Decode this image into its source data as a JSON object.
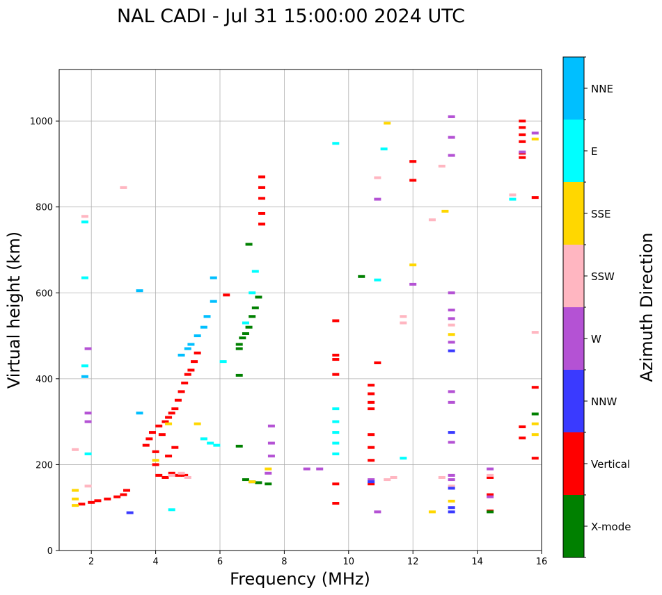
{
  "chart_data": {
    "type": "scatter",
    "title": "NAL CADI - Jul 31 15:00:00 2024 UTC",
    "xlabel": "Frequency (MHz)",
    "ylabel": "Virtual height (km)",
    "xlim": [
      1,
      16
    ],
    "ylim": [
      0,
      1120
    ],
    "xticks": [
      2,
      4,
      6,
      8,
      10,
      12,
      14,
      16
    ],
    "yticks": [
      0,
      200,
      400,
      600,
      800,
      1000
    ],
    "grid": true,
    "colorbar": {
      "label": "Azimuth Direction",
      "categories": [
        {
          "name": "X-mode",
          "color": "#008000"
        },
        {
          "name": "Vertical",
          "color": "#ff0000"
        },
        {
          "name": "NNW",
          "color": "#3a3aff"
        },
        {
          "name": "W",
          "color": "#b452d4"
        },
        {
          "name": "SSW",
          "color": "#ffb6c1"
        },
        {
          "name": "SSE",
          "color": "#ffd700"
        },
        {
          "name": "E",
          "color": "#00ffff"
        },
        {
          "name": "NNE",
          "color": "#00bfff"
        }
      ]
    },
    "series": [
      {
        "name": "Vertical",
        "points": [
          [
            1.7,
            108
          ],
          [
            2.0,
            112
          ],
          [
            2.2,
            116
          ],
          [
            2.5,
            120
          ],
          [
            2.8,
            125
          ],
          [
            3.0,
            130
          ],
          [
            3.1,
            140
          ],
          [
            3.7,
            245
          ],
          [
            3.8,
            260
          ],
          [
            3.9,
            275
          ],
          [
            4.0,
            230
          ],
          [
            4.1,
            290
          ],
          [
            4.2,
            270
          ],
          [
            4.3,
            300
          ],
          [
            4.4,
            310
          ],
          [
            4.5,
            320
          ],
          [
            4.6,
            330
          ],
          [
            4.7,
            350
          ],
          [
            4.8,
            370
          ],
          [
            4.9,
            390
          ],
          [
            5.0,
            410
          ],
          [
            5.1,
            420
          ],
          [
            5.2,
            440
          ],
          [
            5.3,
            460
          ],
          [
            4.1,
            175
          ],
          [
            4.3,
            170
          ],
          [
            4.5,
            180
          ],
          [
            4.7,
            175
          ],
          [
            4.9,
            175
          ],
          [
            4.0,
            200
          ],
          [
            4.4,
            220
          ],
          [
            4.6,
            240
          ],
          [
            6.2,
            595
          ],
          [
            7.3,
            760
          ],
          [
            7.3,
            785
          ],
          [
            7.3,
            820
          ],
          [
            7.3,
            845
          ],
          [
            7.3,
            870
          ],
          [
            9.6,
            110
          ],
          [
            9.6,
            155
          ],
          [
            9.6,
            410
          ],
          [
            9.6,
            445
          ],
          [
            9.6,
            455
          ],
          [
            9.6,
            535
          ],
          [
            10.7,
            155
          ],
          [
            10.7,
            210
          ],
          [
            10.7,
            240
          ],
          [
            10.7,
            270
          ],
          [
            10.7,
            330
          ],
          [
            10.7,
            345
          ],
          [
            10.7,
            365
          ],
          [
            10.7,
            385
          ],
          [
            10.9,
            437
          ],
          [
            12.0,
            862
          ],
          [
            12.0,
            906
          ],
          [
            14.4,
            170
          ],
          [
            14.4,
            130
          ],
          [
            14.4,
            92
          ],
          [
            15.4,
            952
          ],
          [
            15.4,
            968
          ],
          [
            15.4,
            915
          ],
          [
            15.4,
            925
          ],
          [
            15.4,
            985
          ],
          [
            15.4,
            1000
          ],
          [
            15.8,
            822
          ],
          [
            15.4,
            262
          ],
          [
            15.4,
            288
          ],
          [
            15.8,
            215
          ],
          [
            15.8,
            380
          ]
        ]
      },
      {
        "name": "X-mode",
        "points": [
          [
            6.6,
            408
          ],
          [
            6.6,
            470
          ],
          [
            6.6,
            480
          ],
          [
            6.7,
            495
          ],
          [
            6.8,
            505
          ],
          [
            6.9,
            520
          ],
          [
            7.0,
            545
          ],
          [
            7.1,
            565
          ],
          [
            7.2,
            590
          ],
          [
            6.6,
            243
          ],
          [
            6.8,
            165
          ],
          [
            7.0,
            160
          ],
          [
            7.2,
            158
          ],
          [
            7.5,
            155
          ],
          [
            6.9,
            713
          ],
          [
            10.4,
            638
          ],
          [
            14.4,
            90
          ],
          [
            15.8,
            318
          ]
        ]
      },
      {
        "name": "W",
        "points": [
          [
            1.9,
            300
          ],
          [
            1.9,
            320
          ],
          [
            1.9,
            470
          ],
          [
            7.6,
            290
          ],
          [
            7.6,
            250
          ],
          [
            7.6,
            220
          ],
          [
            7.5,
            180
          ],
          [
            8.7,
            190
          ],
          [
            9.1,
            190
          ],
          [
            10.9,
            818
          ],
          [
            10.9,
            90
          ],
          [
            13.2,
            1010
          ],
          [
            13.2,
            962
          ],
          [
            13.2,
            920
          ],
          [
            13.2,
            600
          ],
          [
            13.2,
            560
          ],
          [
            13.2,
            540
          ],
          [
            13.2,
            485
          ],
          [
            13.2,
            370
          ],
          [
            13.2,
            345
          ],
          [
            13.2,
            252
          ],
          [
            13.2,
            175
          ],
          [
            13.2,
            165
          ],
          [
            14.4,
            125
          ],
          [
            14.4,
            190
          ],
          [
            15.4,
            928
          ],
          [
            15.8,
            972
          ],
          [
            10.7,
            165
          ],
          [
            12.0,
            620
          ]
        ]
      },
      {
        "name": "SSW",
        "points": [
          [
            1.5,
            235
          ],
          [
            1.9,
            150
          ],
          [
            4.5,
            175
          ],
          [
            4.8,
            180
          ],
          [
            5.0,
            170
          ],
          [
            5.5,
            260
          ],
          [
            3.0,
            845
          ],
          [
            1.8,
            778
          ],
          [
            10.9,
            868
          ],
          [
            11.2,
            165
          ],
          [
            11.4,
            170
          ],
          [
            11.7,
            530
          ],
          [
            11.7,
            545
          ],
          [
            12.6,
            770
          ],
          [
            12.9,
            895
          ],
          [
            12.9,
            170
          ],
          [
            13.2,
            525
          ],
          [
            13.2,
            150
          ],
          [
            14.4,
            175
          ],
          [
            15.1,
            828
          ],
          [
            15.8,
            508
          ]
        ]
      },
      {
        "name": "SSE",
        "points": [
          [
            1.5,
            105
          ],
          [
            1.5,
            120
          ],
          [
            1.5,
            140
          ],
          [
            4.4,
            295
          ],
          [
            4.0,
            210
          ],
          [
            5.3,
            295
          ],
          [
            7.0,
            160
          ],
          [
            7.5,
            190
          ],
          [
            11.2,
            995
          ],
          [
            12.0,
            665
          ],
          [
            12.6,
            90
          ],
          [
            13.2,
            115
          ],
          [
            13.2,
            503
          ],
          [
            13.0,
            790
          ],
          [
            15.8,
            295
          ],
          [
            15.8,
            270
          ],
          [
            15.8,
            958
          ]
        ]
      },
      {
        "name": "E",
        "points": [
          [
            1.8,
            765
          ],
          [
            1.8,
            635
          ],
          [
            1.8,
            430
          ],
          [
            1.9,
            225
          ],
          [
            4.5,
            95
          ],
          [
            5.5,
            260
          ],
          [
            5.7,
            250
          ],
          [
            5.9,
            245
          ],
          [
            6.1,
            440
          ],
          [
            6.8,
            530
          ],
          [
            7.0,
            600
          ],
          [
            7.1,
            650
          ],
          [
            9.6,
            225
          ],
          [
            9.6,
            250
          ],
          [
            9.6,
            275
          ],
          [
            9.6,
            300
          ],
          [
            9.6,
            330
          ],
          [
            9.6,
            948
          ],
          [
            10.9,
            630
          ],
          [
            11.1,
            935
          ],
          [
            11.7,
            215
          ],
          [
            15.1,
            818
          ]
        ]
      },
      {
        "name": "NNE",
        "points": [
          [
            3.5,
            605
          ],
          [
            4.8,
            455
          ],
          [
            5.0,
            470
          ],
          [
            5.1,
            480
          ],
          [
            5.3,
            500
          ],
          [
            5.5,
            520
          ],
          [
            5.6,
            545
          ],
          [
            5.8,
            580
          ],
          [
            5.8,
            635
          ],
          [
            1.8,
            405
          ],
          [
            3.5,
            320
          ]
        ]
      },
      {
        "name": "NNW",
        "points": [
          [
            3.2,
            88
          ],
          [
            13.2,
            90
          ],
          [
            13.2,
            100
          ],
          [
            13.2,
            145
          ],
          [
            13.2,
            275
          ],
          [
            13.2,
            465
          ],
          [
            10.7,
            160
          ]
        ]
      }
    ]
  }
}
